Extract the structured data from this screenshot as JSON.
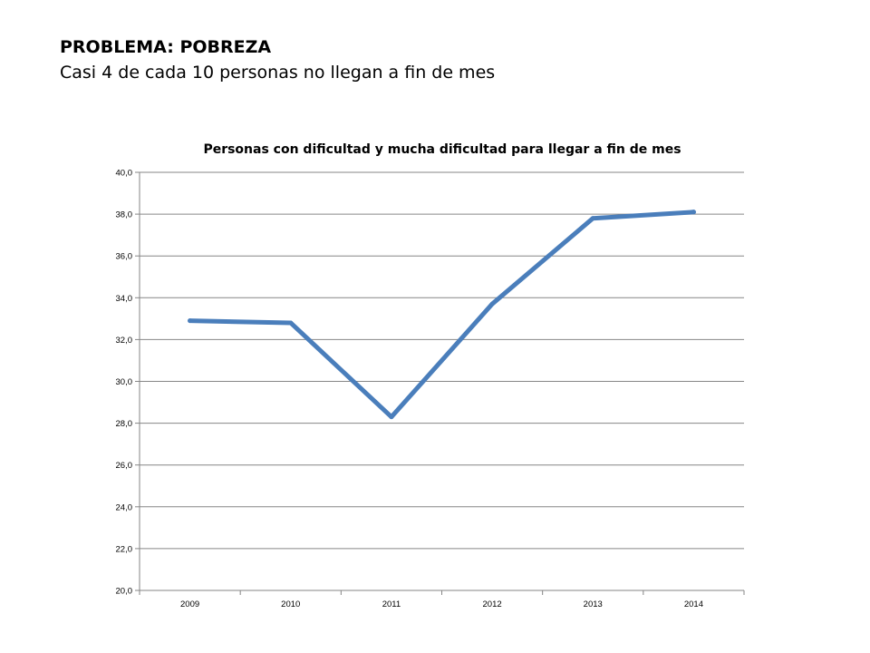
{
  "slide": {
    "title": "PROBLEMA: POBREZA",
    "subtitle": "Casi 4 de cada 10 personas no llegan a fin de mes"
  },
  "chart_data": {
    "type": "line",
    "title": "Personas con dificultad y mucha  dificultad para llegar a fin de mes",
    "xlabel": "",
    "ylabel": "",
    "categories": [
      "2009",
      "2010",
      "2011",
      "2012",
      "2013",
      "2014"
    ],
    "series": [
      {
        "values": [
          32.9,
          32.8,
          28.3,
          33.7,
          37.8,
          38.1
        ],
        "color": "#4A7EBB"
      }
    ],
    "ylim": [
      20,
      40
    ],
    "y_ticks": [
      "20,0",
      "22,0",
      "24,0",
      "26,0",
      "28,0",
      "30,0",
      "32,0",
      "34,0",
      "36,0",
      "38,0",
      "40,0"
    ],
    "grid": true,
    "legend": "none"
  }
}
